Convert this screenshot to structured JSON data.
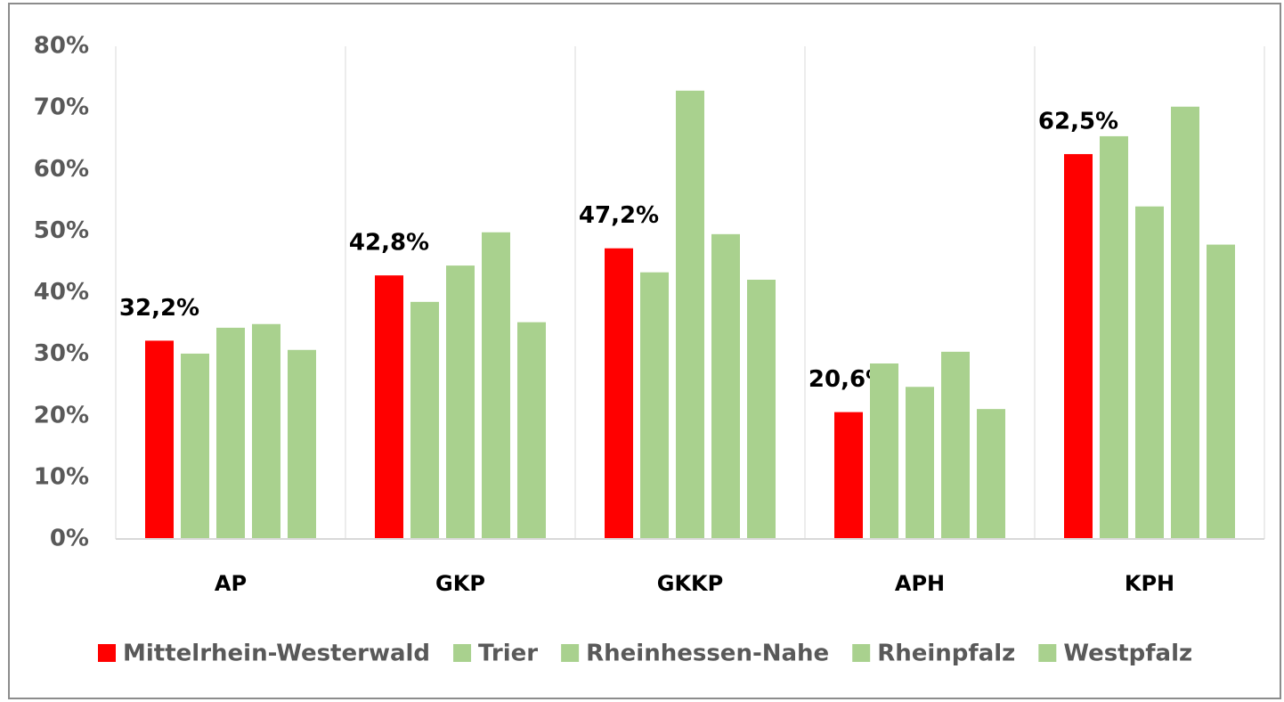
{
  "chart_data": {
    "type": "bar",
    "categories": [
      "AP",
      "GKP",
      "GKKP",
      "APH",
      "KPH"
    ],
    "series": [
      {
        "name": "Mittelrhein-Westerwald",
        "color": "#ff0000",
        "values": [
          32.2,
          42.8,
          47.2,
          20.6,
          62.5
        ],
        "value_labels": [
          "32,2%",
          "42,8%",
          "47,2%",
          "20,6%",
          "62,5%"
        ]
      },
      {
        "name": "Trier",
        "color": "#a9d18e",
        "values": [
          30.1,
          38.5,
          43.3,
          28.5,
          65.4
        ]
      },
      {
        "name": "Rheinhessen-Nahe",
        "color": "#a9d18e",
        "values": [
          34.3,
          44.4,
          72.8,
          24.7,
          54.0
        ]
      },
      {
        "name": "Rheinpfalz",
        "color": "#a9d18e",
        "values": [
          34.9,
          49.8,
          49.5,
          30.4,
          70.2
        ]
      },
      {
        "name": "Westpfalz",
        "color": "#a9d18e",
        "values": [
          30.7,
          35.2,
          42.1,
          21.1,
          47.8
        ]
      }
    ],
    "ylim": [
      0,
      80
    ],
    "yticks": [
      {
        "value": 0,
        "label": "0%"
      },
      {
        "value": 10,
        "label": "10%"
      },
      {
        "value": 20,
        "label": "20%"
      },
      {
        "value": 30,
        "label": "30%"
      },
      {
        "value": 40,
        "label": "40%"
      },
      {
        "value": 50,
        "label": "50%"
      },
      {
        "value": 60,
        "label": "60%"
      },
      {
        "value": 70,
        "label": "70%"
      },
      {
        "value": 80,
        "label": "80%"
      }
    ],
    "legend": "bottom"
  }
}
